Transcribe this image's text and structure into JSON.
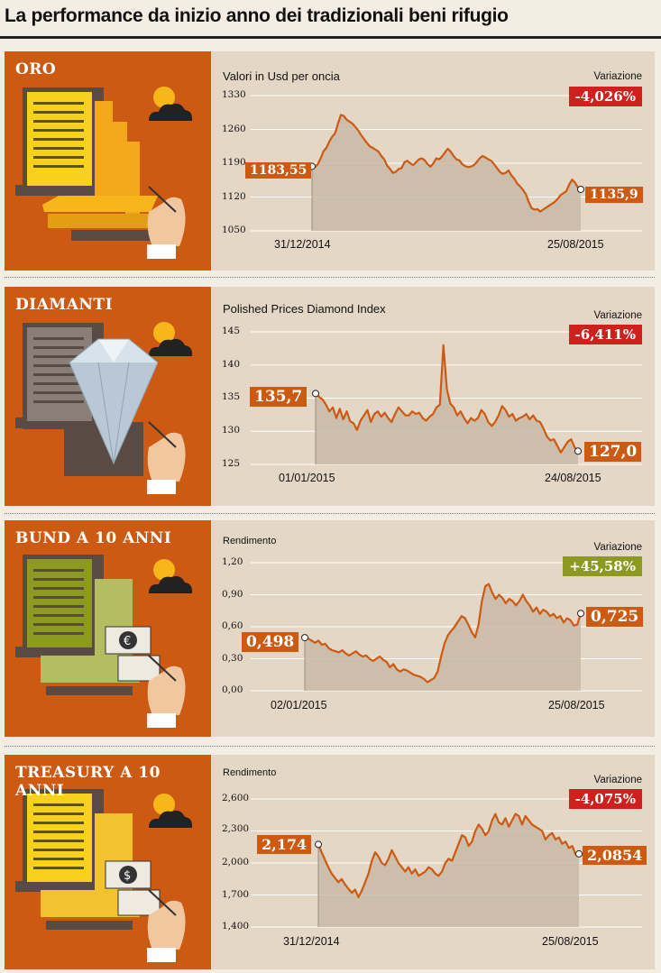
{
  "header": {
    "title": "La performance da inizio anno dei tradizionali beni rifugio"
  },
  "colors": {
    "orange": "#cc5a13",
    "negative": "#d0201e",
    "positive": "#8c9a22",
    "area": "#c9b9a6"
  },
  "chart_data": [
    {
      "type": "area",
      "title": "ORO",
      "subtitle": "Valori in Usd per oncia",
      "change_label": "Variazione",
      "change": "-4,026%",
      "change_sign": "negative",
      "x_start": "31/12/2014",
      "x_end": "25/08/2015",
      "y_ticks": [
        "1330",
        "1260",
        "1190",
        "1120",
        "1050"
      ],
      "ylim": [
        1050,
        1330
      ],
      "start_label": "1183,55",
      "end_label": "1135,9",
      "values": [
        1183.55,
        1182,
        1188,
        1200,
        1215,
        1222,
        1235,
        1245,
        1252,
        1272,
        1290,
        1288,
        1280,
        1276,
        1272,
        1265,
        1258,
        1248,
        1240,
        1232,
        1225,
        1222,
        1218,
        1214,
        1205,
        1198,
        1185,
        1178,
        1170,
        1172,
        1178,
        1180,
        1192,
        1195,
        1190,
        1186,
        1192,
        1198,
        1200,
        1196,
        1188,
        1183,
        1190,
        1200,
        1198,
        1204,
        1212,
        1220,
        1214,
        1205,
        1198,
        1196,
        1188,
        1184,
        1182,
        1183,
        1186,
        1192,
        1200,
        1205,
        1202,
        1198,
        1195,
        1188,
        1180,
        1172,
        1168,
        1170,
        1175,
        1165,
        1158,
        1148,
        1142,
        1135,
        1126,
        1110,
        1097,
        1094,
        1095,
        1090,
        1094,
        1098,
        1102,
        1106,
        1110,
        1116,
        1124,
        1128,
        1132,
        1146,
        1156,
        1150,
        1140,
        1135.9
      ]
    },
    {
      "type": "area",
      "title": "DIAMANTI",
      "subtitle": "Polished Prices Diamond Index",
      "change_label": "Variazione",
      "change": "-6,411%",
      "change_sign": "negative",
      "x_start": "01/01/2015",
      "x_end": "24/08/2015",
      "y_ticks": [
        "145",
        "140",
        "135",
        "130",
        "125"
      ],
      "ylim": [
        125,
        145
      ],
      "start_label": "135,7",
      "end_label": "127,0",
      "values": [
        135.7,
        135.2,
        134.8,
        134.0,
        133.0,
        133.6,
        132.0,
        133.4,
        131.8,
        133.0,
        131.5,
        131.2,
        130.2,
        131.6,
        132.4,
        133.2,
        131.4,
        132.6,
        133.0,
        132.2,
        132.8,
        132.0,
        131.4,
        132.6,
        133.6,
        133.0,
        132.4,
        132.4,
        133.0,
        132.6,
        132.8,
        132.0,
        131.6,
        132.2,
        132.6,
        133.6,
        134.0,
        143.0,
        136.4,
        134.2,
        133.6,
        132.4,
        133.0,
        132.0,
        131.2,
        132.0,
        131.6,
        132.0,
        133.2,
        132.6,
        131.4,
        130.8,
        131.4,
        132.4,
        133.8,
        133.2,
        132.2,
        132.6,
        131.6,
        132.0,
        132.2,
        132.6,
        131.8,
        132.4,
        131.6,
        131.4,
        130.4,
        129.2,
        128.6,
        128.8,
        127.8,
        126.8,
        127.6,
        128.4,
        128.8,
        127.6,
        127.0
      ]
    },
    {
      "type": "area",
      "title": "BUND A 10 ANNI",
      "subtitle": "Rendimento",
      "change_label": "Variazione",
      "change": "+45,58%",
      "change_sign": "positive",
      "x_start": "02/01/2015",
      "x_end": "25/08/2015",
      "y_ticks": [
        "1,20",
        "0,90",
        "0,60",
        "0,30",
        "0,00"
      ],
      "ylim": [
        0,
        1.2
      ],
      "start_label": "0,498",
      "end_label": "0,725",
      "values": [
        0.498,
        0.49,
        0.47,
        0.45,
        0.47,
        0.43,
        0.44,
        0.4,
        0.38,
        0.37,
        0.36,
        0.38,
        0.35,
        0.33,
        0.35,
        0.37,
        0.34,
        0.32,
        0.33,
        0.3,
        0.28,
        0.3,
        0.32,
        0.29,
        0.27,
        0.22,
        0.25,
        0.2,
        0.18,
        0.2,
        0.19,
        0.17,
        0.15,
        0.14,
        0.13,
        0.11,
        0.08,
        0.1,
        0.12,
        0.18,
        0.32,
        0.44,
        0.52,
        0.56,
        0.6,
        0.65,
        0.7,
        0.68,
        0.62,
        0.55,
        0.5,
        0.62,
        0.84,
        0.98,
        1.0,
        0.92,
        0.86,
        0.9,
        0.87,
        0.82,
        0.86,
        0.84,
        0.8,
        0.84,
        0.9,
        0.84,
        0.8,
        0.74,
        0.78,
        0.72,
        0.76,
        0.74,
        0.7,
        0.72,
        0.68,
        0.7,
        0.64,
        0.68,
        0.66,
        0.61,
        0.62,
        0.725
      ]
    },
    {
      "type": "area",
      "title": "TREASURY A 10 ANNI",
      "subtitle": "Rendimento",
      "change_label": "Variazione",
      "change": "-4,075%",
      "change_sign": "negative",
      "x_start": "31/12/2014",
      "x_end": "25/08/2015",
      "y_ticks": [
        "2,600",
        "2,300",
        "2,000",
        "1,700",
        "1,400"
      ],
      "ylim": [
        1.4,
        2.6
      ],
      "start_label": "2,174",
      "end_label": "2,0854",
      "values": [
        2.174,
        2.1,
        2.03,
        1.96,
        1.9,
        1.86,
        1.82,
        1.85,
        1.8,
        1.76,
        1.72,
        1.75,
        1.68,
        1.74,
        1.82,
        1.9,
        2.02,
        2.1,
        2.06,
        2.0,
        1.98,
        2.04,
        2.12,
        2.06,
        2.0,
        1.96,
        1.92,
        1.96,
        1.9,
        1.94,
        1.88,
        1.9,
        1.92,
        1.96,
        1.94,
        1.9,
        1.88,
        1.92,
        2.0,
        2.04,
        2.02,
        2.1,
        2.18,
        2.26,
        2.24,
        2.16,
        2.2,
        2.3,
        2.36,
        2.32,
        2.26,
        2.3,
        2.4,
        2.46,
        2.38,
        2.36,
        2.42,
        2.34,
        2.4,
        2.46,
        2.44,
        2.36,
        2.44,
        2.4,
        2.36,
        2.34,
        2.32,
        2.3,
        2.22,
        2.26,
        2.28,
        2.22,
        2.24,
        2.18,
        2.2,
        2.14,
        2.16,
        2.08,
        2.0854
      ]
    }
  ]
}
